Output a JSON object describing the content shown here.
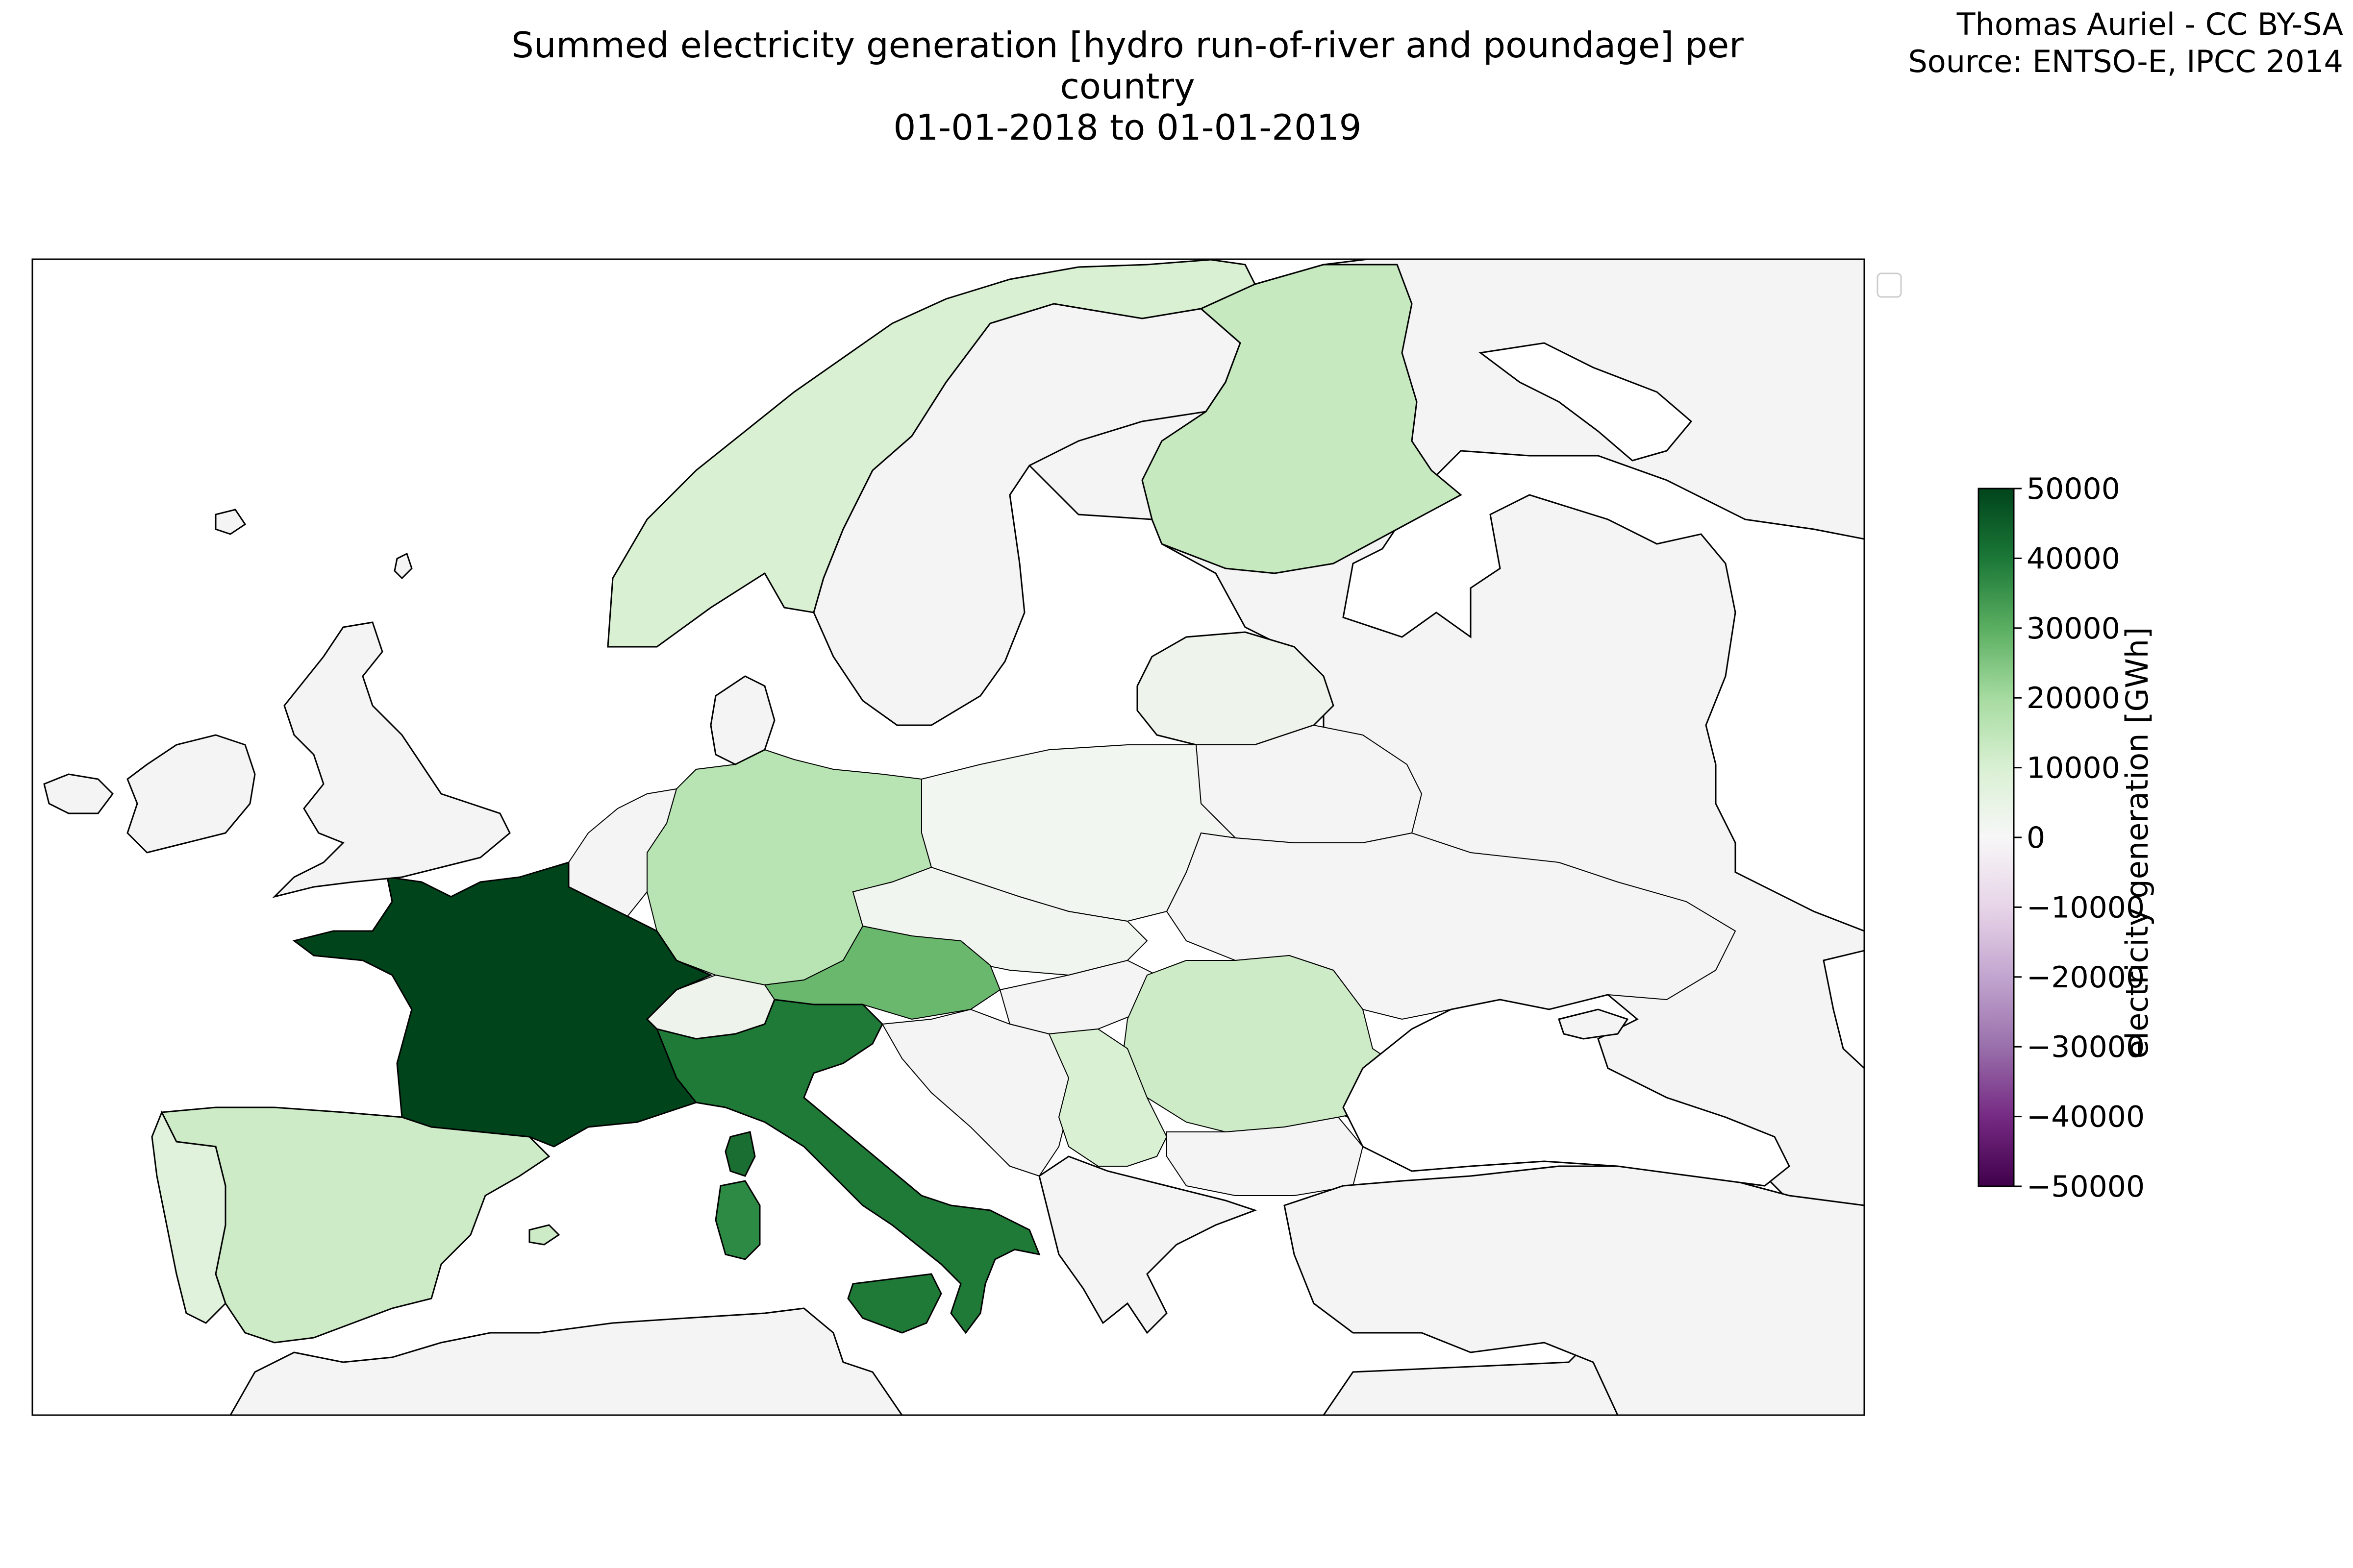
{
  "title": {
    "line1": "Summed electricity generation [hydro run-of-river and poundage] per country",
    "line2": "01-01-2018 to 01-01-2019"
  },
  "credits": {
    "author": "Thomas Auriel - CC BY-SA",
    "source": "Source: ENTSO-E, IPCC 2014"
  },
  "colorbar": {
    "label": "electricity generation [GWh]",
    "min": -50000,
    "max": 50000,
    "ticks": [
      50000,
      40000,
      30000,
      20000,
      10000,
      0,
      -10000,
      -20000,
      -30000,
      -40000,
      -50000
    ],
    "colormap": "PRGn",
    "colors": [
      "#40004b",
      "#762a83",
      "#9970ab",
      "#c2a5cf",
      "#e7d4e8",
      "#f7f7f7",
      "#d9f0d3",
      "#a6dba0",
      "#5aae61",
      "#1b7837",
      "#00441b"
    ]
  },
  "colors": {
    "no_data": "#f4f4f4",
    "sea": "#ffffff",
    "coast": "#000000"
  },
  "legend": {
    "entries": []
  }
}
